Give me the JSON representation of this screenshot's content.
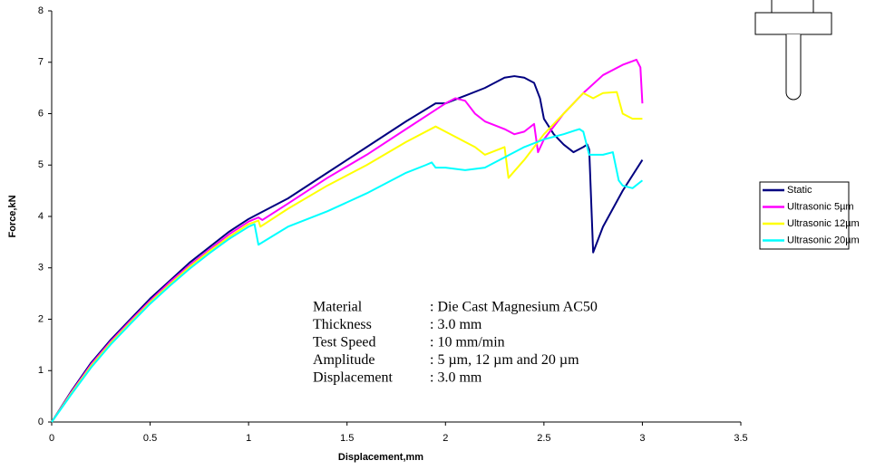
{
  "chart_data": {
    "type": "line",
    "xlabel": "Displacement,mm",
    "ylabel": "Force,kN",
    "xlim": [
      0,
      3.5
    ],
    "xticks": [
      0,
      0.5,
      1,
      1.5,
      2,
      2.5,
      3,
      3.5
    ],
    "ylim": [
      0,
      8
    ],
    "yticks": [
      0,
      1,
      2,
      3,
      4,
      5,
      6,
      7,
      8
    ],
    "grid": false,
    "legend": "right",
    "series": [
      {
        "name": "Static",
        "color": "#000080",
        "x": [
          0,
          0.1,
          0.2,
          0.3,
          0.4,
          0.5,
          0.6,
          0.7,
          0.8,
          0.9,
          1.0,
          1.05,
          1.2,
          1.4,
          1.6,
          1.8,
          1.95,
          2.0,
          2.1,
          2.2,
          2.3,
          2.35,
          2.4,
          2.45,
          2.48,
          2.5,
          2.55,
          2.6,
          2.65,
          2.7,
          2.72,
          2.73,
          2.75,
          2.8,
          2.9,
          3.0
        ],
        "values": [
          0,
          0.6,
          1.15,
          1.6,
          2.0,
          2.4,
          2.75,
          3.1,
          3.4,
          3.7,
          3.95,
          4.05,
          4.35,
          4.85,
          5.35,
          5.85,
          6.2,
          6.2,
          6.35,
          6.5,
          6.7,
          6.73,
          6.7,
          6.6,
          6.3,
          5.9,
          5.6,
          5.4,
          5.25,
          5.35,
          5.4,
          5.3,
          3.3,
          3.8,
          4.5,
          5.1
        ]
      },
      {
        "name": "Ultrasonic 5µm",
        "color": "#ff00ff",
        "x": [
          0,
          0.1,
          0.2,
          0.3,
          0.4,
          0.5,
          0.6,
          0.7,
          0.8,
          0.9,
          1.0,
          1.05,
          1.07,
          1.2,
          1.4,
          1.6,
          1.8,
          2.0,
          2.05,
          2.1,
          2.15,
          2.2,
          2.3,
          2.35,
          2.4,
          2.45,
          2.47,
          2.5,
          2.6,
          2.7,
          2.8,
          2.9,
          2.97,
          2.99,
          3.0
        ],
        "values": [
          0,
          0.58,
          1.12,
          1.57,
          1.97,
          2.36,
          2.72,
          3.05,
          3.35,
          3.65,
          3.9,
          3.98,
          3.93,
          4.25,
          4.75,
          5.2,
          5.7,
          6.2,
          6.3,
          6.25,
          6.0,
          5.85,
          5.7,
          5.6,
          5.65,
          5.8,
          5.25,
          5.5,
          6.0,
          6.4,
          6.75,
          6.95,
          7.05,
          6.9,
          6.2
        ]
      },
      {
        "name": "Ultrasonic 12µm",
        "color": "#ffff00",
        "x": [
          0,
          0.1,
          0.2,
          0.3,
          0.4,
          0.5,
          0.6,
          0.7,
          0.8,
          0.9,
          1.0,
          1.05,
          1.06,
          1.2,
          1.4,
          1.6,
          1.8,
          1.95,
          2.0,
          2.1,
          2.15,
          2.2,
          2.3,
          2.32,
          2.4,
          2.5,
          2.6,
          2.7,
          2.75,
          2.8,
          2.87,
          2.9,
          2.95,
          3.0
        ],
        "values": [
          0,
          0.56,
          1.09,
          1.54,
          1.94,
          2.33,
          2.68,
          3.02,
          3.32,
          3.6,
          3.85,
          3.92,
          3.8,
          4.15,
          4.6,
          5.0,
          5.45,
          5.75,
          5.65,
          5.45,
          5.35,
          5.2,
          5.35,
          4.75,
          5.1,
          5.6,
          6.0,
          6.4,
          6.3,
          6.4,
          6.42,
          6.0,
          5.9,
          5.9
        ]
      },
      {
        "name": "Ultrasonic 20µm",
        "color": "#00ffff",
        "x": [
          0,
          0.1,
          0.2,
          0.3,
          0.4,
          0.5,
          0.6,
          0.7,
          0.8,
          0.9,
          1.0,
          1.03,
          1.05,
          1.2,
          1.4,
          1.6,
          1.8,
          1.9,
          1.93,
          1.95,
          2.0,
          2.1,
          2.2,
          2.3,
          2.4,
          2.5,
          2.6,
          2.68,
          2.7,
          2.73,
          2.8,
          2.85,
          2.88,
          2.9,
          2.95,
          3.0
        ],
        "values": [
          0,
          0.54,
          1.06,
          1.51,
          1.91,
          2.3,
          2.65,
          2.98,
          3.28,
          3.56,
          3.8,
          3.85,
          3.45,
          3.8,
          4.1,
          4.45,
          4.85,
          5.0,
          5.05,
          4.95,
          4.95,
          4.9,
          4.95,
          5.15,
          5.35,
          5.5,
          5.6,
          5.7,
          5.65,
          5.2,
          5.2,
          5.25,
          4.7,
          4.6,
          4.55,
          4.7
        ]
      }
    ],
    "annotations": [
      {
        "label": "Material",
        "text": ": Die Cast Magnesium AC50"
      },
      {
        "label": "Thickness",
        "text": ": 3.0 mm"
      },
      {
        "label": "Test Speed",
        "text": ": 10 mm/min"
      },
      {
        "label": "Amplitude",
        "text": ": 5 µm, 12 µm and 20 µm"
      },
      {
        "label": "Displacement",
        "text": ": 3.0 mm"
      }
    ]
  }
}
